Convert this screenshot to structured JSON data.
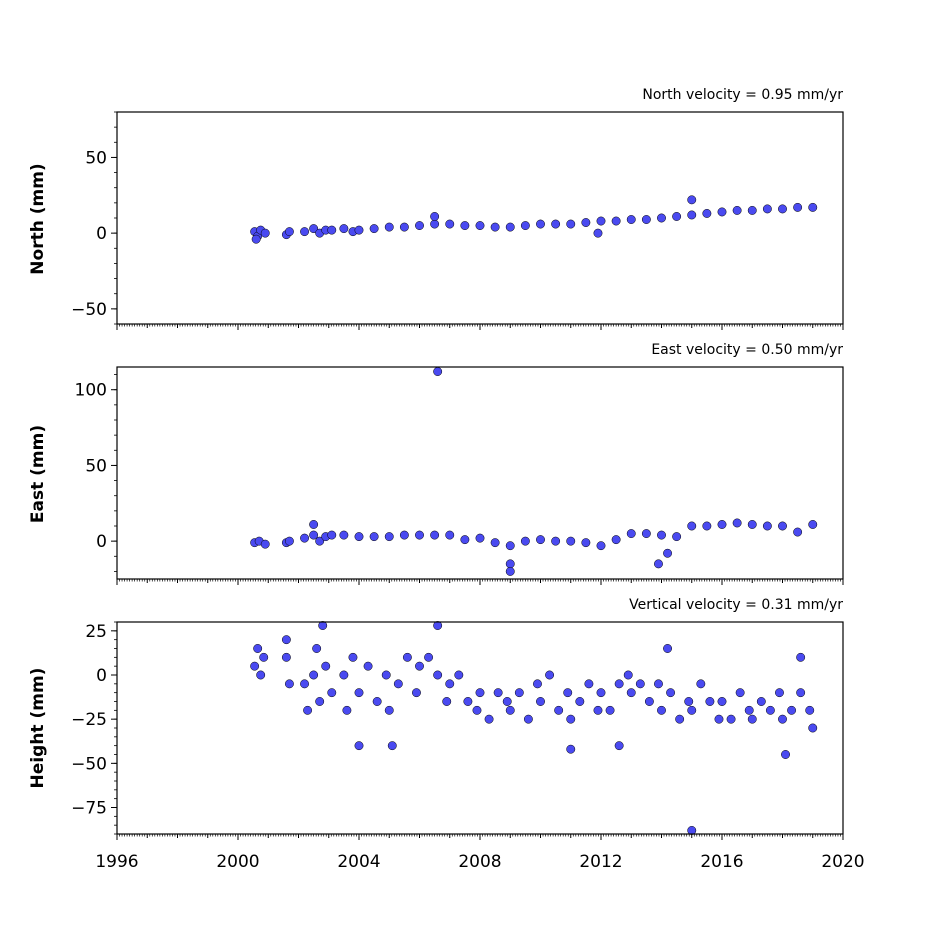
{
  "chart_data": [
    {
      "type": "scatter",
      "title": "North velocity = 0.95 mm/yr",
      "xlabel": "",
      "ylabel": "North (mm)",
      "xlim": [
        1996,
        2020
      ],
      "ylim": [
        -60,
        80
      ],
      "yticks": [
        -50,
        0,
        50
      ],
      "grid": false,
      "marker_color": "#4a4af0",
      "edge_color": "#000000",
      "series": [
        {
          "points": [
            [
              2000.55,
              1
            ],
            [
              2000.65,
              -2
            ],
            [
              2000.75,
              2
            ],
            [
              2000.9,
              0
            ],
            [
              2001.6,
              -1
            ],
            [
              2001.7,
              1
            ],
            [
              2002.2,
              1
            ],
            [
              2002.5,
              3
            ],
            [
              2002.7,
              0
            ],
            [
              2002.9,
              2
            ],
            [
              2003.1,
              2
            ],
            [
              2003.5,
              3
            ],
            [
              2003.8,
              1
            ],
            [
              2004.0,
              2
            ],
            [
              2004.5,
              3
            ],
            [
              2005.0,
              4
            ],
            [
              2005.5,
              4
            ],
            [
              2006.0,
              5
            ],
            [
              2006.5,
              6
            ],
            [
              2007.0,
              6
            ],
            [
              2007.5,
              5
            ],
            [
              2008.0,
              5
            ],
            [
              2008.5,
              4
            ],
            [
              2009.0,
              4
            ],
            [
              2009.5,
              5
            ],
            [
              2010.0,
              6
            ],
            [
              2010.5,
              6
            ],
            [
              2011.0,
              6
            ],
            [
              2011.5,
              7
            ],
            [
              2012.0,
              8
            ],
            [
              2012.5,
              8
            ],
            [
              2013.0,
              9
            ],
            [
              2013.5,
              9
            ],
            [
              2014.0,
              10
            ],
            [
              2014.5,
              11
            ],
            [
              2015.0,
              12
            ],
            [
              2015.5,
              13
            ],
            [
              2016.0,
              14
            ],
            [
              2016.5,
              15
            ],
            [
              2017.0,
              15
            ],
            [
              2017.5,
              16
            ],
            [
              2018.0,
              16
            ],
            [
              2018.5,
              17
            ],
            [
              2019.0,
              17
            ],
            [
              2000.6,
              -4
            ],
            [
              2006.5,
              11
            ],
            [
              2011.9,
              0
            ],
            [
              2015.0,
              22
            ]
          ]
        }
      ]
    },
    {
      "type": "scatter",
      "title": "East velocity = 0.50 mm/yr",
      "xlabel": "",
      "ylabel": "East (mm)",
      "xlim": [
        1996,
        2020
      ],
      "ylim": [
        -25,
        115
      ],
      "yticks": [
        0,
        50,
        100
      ],
      "grid": false,
      "marker_color": "#4a4af0",
      "edge_color": "#000000",
      "series": [
        {
          "points": [
            [
              2000.55,
              -1
            ],
            [
              2000.7,
              0
            ],
            [
              2000.9,
              -2
            ],
            [
              2001.6,
              -1
            ],
            [
              2001.7,
              0
            ],
            [
              2002.2,
              2
            ],
            [
              2002.5,
              4
            ],
            [
              2002.7,
              0
            ],
            [
              2002.9,
              3
            ],
            [
              2003.1,
              4
            ],
            [
              2003.5,
              4
            ],
            [
              2004.0,
              3
            ],
            [
              2004.5,
              3
            ],
            [
              2005.0,
              3
            ],
            [
              2005.5,
              4
            ],
            [
              2006.0,
              4
            ],
            [
              2006.5,
              4
            ],
            [
              2007.0,
              4
            ],
            [
              2007.5,
              1
            ],
            [
              2008.0,
              2
            ],
            [
              2008.5,
              -1
            ],
            [
              2009.0,
              -3
            ],
            [
              2009.5,
              0
            ],
            [
              2010.0,
              1
            ],
            [
              2010.5,
              0
            ],
            [
              2011.0,
              0
            ],
            [
              2011.5,
              -1
            ],
            [
              2012.0,
              -3
            ],
            [
              2012.5,
              1
            ],
            [
              2013.0,
              5
            ],
            [
              2013.5,
              5
            ],
            [
              2014.0,
              4
            ],
            [
              2014.5,
              3
            ],
            [
              2015.0,
              10
            ],
            [
              2015.5,
              10
            ],
            [
              2016.0,
              11
            ],
            [
              2016.5,
              12
            ],
            [
              2017.0,
              11
            ],
            [
              2017.5,
              10
            ],
            [
              2018.0,
              10
            ],
            [
              2018.5,
              6
            ],
            [
              2019.0,
              11
            ],
            [
              2006.6,
              112
            ],
            [
              2009.0,
              -15
            ],
            [
              2009.0,
              -20
            ],
            [
              2013.9,
              -15
            ],
            [
              2014.2,
              -8
            ],
            [
              2002.5,
              11
            ]
          ]
        }
      ]
    },
    {
      "type": "scatter",
      "title": "Vertical velocity = 0.31 mm/yr",
      "xlabel": "",
      "ylabel": "Height (mm)",
      "xlim": [
        1996,
        2020
      ],
      "ylim": [
        -90,
        30
      ],
      "yticks": [
        -75,
        -50,
        -25,
        0,
        25
      ],
      "xticks": [
        1996,
        2000,
        2004,
        2008,
        2012,
        2016,
        2020
      ],
      "grid": false,
      "marker_color": "#4a4af0",
      "edge_color": "#000000",
      "series": [
        {
          "points": [
            [
              2000.55,
              5
            ],
            [
              2000.65,
              15
            ],
            [
              2000.75,
              0
            ],
            [
              2000.85,
              10
            ],
            [
              2001.6,
              10
            ],
            [
              2001.7,
              -5
            ],
            [
              2001.6,
              20
            ],
            [
              2002.2,
              -5
            ],
            [
              2002.3,
              -20
            ],
            [
              2002.5,
              0
            ],
            [
              2002.6,
              15
            ],
            [
              2002.7,
              -15
            ],
            [
              2002.9,
              5
            ],
            [
              2003.1,
              -10
            ],
            [
              2003.5,
              0
            ],
            [
              2003.6,
              -20
            ],
            [
              2003.8,
              10
            ],
            [
              2004.0,
              -10
            ],
            [
              2004.3,
              5
            ],
            [
              2004.6,
              -15
            ],
            [
              2004.9,
              0
            ],
            [
              2005.0,
              -20
            ],
            [
              2005.3,
              -5
            ],
            [
              2005.6,
              10
            ],
            [
              2005.9,
              -10
            ],
            [
              2006.0,
              5
            ],
            [
              2006.3,
              10
            ],
            [
              2006.6,
              0
            ],
            [
              2006.9,
              -15
            ],
            [
              2007.0,
              -5
            ],
            [
              2007.3,
              0
            ],
            [
              2007.6,
              -15
            ],
            [
              2007.9,
              -20
            ],
            [
              2008.0,
              -10
            ],
            [
              2008.3,
              -25
            ],
            [
              2008.6,
              -10
            ],
            [
              2008.9,
              -15
            ],
            [
              2009.0,
              -20
            ],
            [
              2009.3,
              -10
            ],
            [
              2009.6,
              -25
            ],
            [
              2009.9,
              -5
            ],
            [
              2010.0,
              -15
            ],
            [
              2010.3,
              0
            ],
            [
              2010.6,
              -20
            ],
            [
              2010.9,
              -10
            ],
            [
              2011.0,
              -25
            ],
            [
              2011.3,
              -15
            ],
            [
              2011.6,
              -5
            ],
            [
              2011.9,
              -20
            ],
            [
              2012.0,
              -10
            ],
            [
              2012.3,
              -20
            ],
            [
              2012.6,
              -5
            ],
            [
              2012.9,
              0
            ],
            [
              2013.0,
              -10
            ],
            [
              2013.3,
              -5
            ],
            [
              2013.6,
              -15
            ],
            [
              2013.9,
              -5
            ],
            [
              2014.0,
              -20
            ],
            [
              2014.3,
              -10
            ],
            [
              2014.6,
              -25
            ],
            [
              2014.9,
              -15
            ],
            [
              2015.0,
              -20
            ],
            [
              2015.3,
              -5
            ],
            [
              2015.6,
              -15
            ],
            [
              2015.9,
              -25
            ],
            [
              2016.0,
              -15
            ],
            [
              2016.3,
              -25
            ],
            [
              2016.6,
              -10
            ],
            [
              2016.9,
              -20
            ],
            [
              2017.0,
              -25
            ],
            [
              2017.3,
              -15
            ],
            [
              2017.6,
              -20
            ],
            [
              2017.9,
              -10
            ],
            [
              2018.0,
              -25
            ],
            [
              2018.3,
              -20
            ],
            [
              2018.6,
              -10
            ],
            [
              2018.9,
              -20
            ],
            [
              2019.0,
              -30
            ],
            [
              2004.0,
              -40
            ],
            [
              2005.1,
              -40
            ],
            [
              2006.6,
              28
            ],
            [
              2002.8,
              28
            ],
            [
              2011.0,
              -42
            ],
            [
              2012.6,
              -40
            ],
            [
              2014.2,
              15
            ],
            [
              2015.0,
              -88
            ],
            [
              2018.1,
              -45
            ],
            [
              2018.6,
              10
            ]
          ]
        }
      ]
    }
  ]
}
